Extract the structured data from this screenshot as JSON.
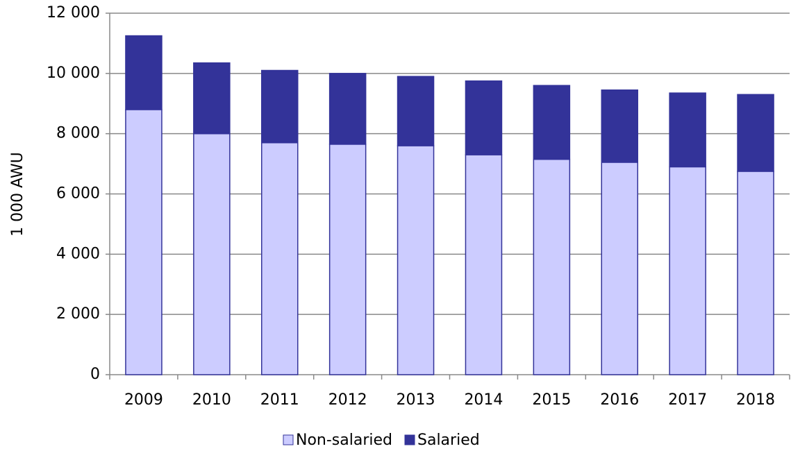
{
  "chart_data": {
    "type": "stacked_bar",
    "ylabel": "1 000 AWU",
    "categories": [
      "2009",
      "2010",
      "2011",
      "2012",
      "2013",
      "2014",
      "2015",
      "2016",
      "2017",
      "2018"
    ],
    "series": [
      {
        "name": "Non-salaried",
        "color": "#ccccff",
        "values": [
          8800,
          8000,
          7700,
          7650,
          7600,
          7300,
          7150,
          7050,
          6900,
          6750
        ]
      },
      {
        "name": "Salaried",
        "color": "#333399",
        "values": [
          2450,
          2350,
          2400,
          2350,
          2300,
          2450,
          2450,
          2400,
          2450,
          2550
        ]
      }
    ],
    "ylim": [
      0,
      12000
    ],
    "yticks": [
      0,
      {
        "value": 2000,
        "label": "2 000"
      },
      {
        "value": 4000,
        "label": "4 000"
      },
      {
        "value": 6000,
        "label": "6 000"
      },
      {
        "value": 8000,
        "label": "8 000"
      },
      {
        "value": 10000,
        "label": "10 000"
      },
      {
        "value": 12000,
        "label": "12 000"
      }
    ],
    "grid": true,
    "legend": "bottom"
  }
}
